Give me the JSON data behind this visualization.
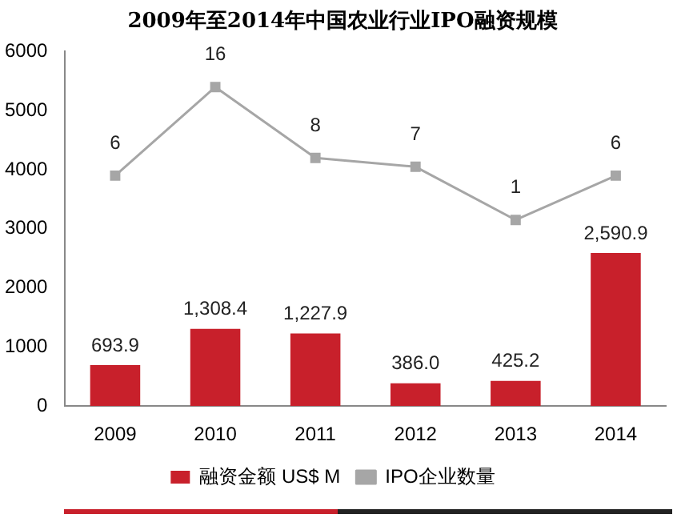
{
  "chart_data": {
    "type": "bar",
    "title": "2009年至2014年中国农业行业IPO融资规模",
    "categories": [
      "2009",
      "2010",
      "2011",
      "2012",
      "2013",
      "2014"
    ],
    "series": [
      {
        "name": "融资金额 US$ M",
        "color": "#c8202b",
        "values": [
          693.9,
          1308.4,
          1227.9,
          386.0,
          425.2,
          2590.9
        ],
        "value_labels": [
          "693.9",
          "1,308.4",
          "1,227.9",
          "386.0",
          "425.2",
          "2,590.9"
        ]
      },
      {
        "name": "IPO企业数量",
        "type": "line",
        "axis": "y2",
        "color": "#a6a6a6",
        "values": [
          6,
          16,
          8,
          7,
          1,
          6
        ]
      }
    ],
    "ylim": [
      0,
      6000
    ],
    "yticks": [
      0,
      1000,
      2000,
      3000,
      4000,
      5000,
      6000
    ],
    "y2lim": [
      -20,
      20
    ],
    "grid": false,
    "legend": "bottom",
    "marker": "square",
    "line_style": "solid",
    "data_labels": true
  }
}
